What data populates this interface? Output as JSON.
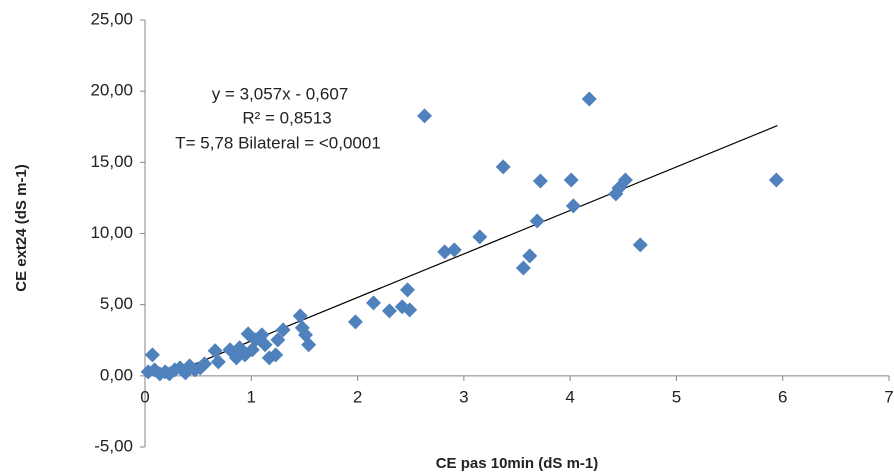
{
  "chart_data": {
    "type": "scatter",
    "x_label": "CE pas 10min (dS m-1)",
    "y_label": "CE ext24 (dS m-1)",
    "xlim": [
      0,
      7
    ],
    "xticks": [
      0,
      1,
      2,
      3,
      4,
      5,
      6,
      7
    ],
    "ylim": [
      -5,
      25
    ],
    "yticks": [
      {
        "value": -5,
        "label": "-5,00"
      },
      {
        "value": 0,
        "label": "0,00"
      },
      {
        "value": 5,
        "label": "5,00"
      },
      {
        "value": 10,
        "label": "10,00"
      },
      {
        "value": 15,
        "label": "15,00"
      },
      {
        "value": 20,
        "label": "20,00"
      },
      {
        "value": 25,
        "label": "25,00"
      }
    ],
    "grid": false,
    "color": "#4f81bd",
    "x": [
      0.07,
      0.03,
      0.09,
      0.14,
      0.19,
      0.23,
      0.28,
      0.33,
      0.38,
      0.42,
      0.47,
      0.52,
      0.56,
      0.66,
      0.69,
      0.8,
      0.86,
      0.89,
      0.94,
      0.97,
      1.01,
      1.04,
      1.1,
      1.13,
      1.17,
      1.23,
      1.25,
      1.3,
      1.46,
      1.48,
      1.51,
      1.54,
      1.98,
      2.15,
      2.3,
      2.42,
      2.47,
      2.49,
      2.63,
      2.82,
      2.91,
      3.15,
      3.37,
      3.56,
      3.62,
      3.69,
      3.72,
      4.01,
      4.03,
      4.18,
      4.43,
      4.46,
      4.52,
      4.66,
      5.94
    ],
    "values": [
      1.47,
      0.28,
      0.42,
      0.14,
      0.28,
      0.14,
      0.42,
      0.56,
      0.21,
      0.7,
      0.42,
      0.56,
      0.84,
      1.76,
      0.98,
      1.83,
      1.26,
      1.97,
      1.47,
      2.95,
      1.83,
      2.53,
      2.88,
      2.18,
      1.26,
      1.47,
      2.53,
      3.23,
      4.21,
      3.37,
      2.88,
      2.18,
      3.79,
      5.13,
      4.56,
      4.85,
      6.04,
      4.63,
      18.26,
      8.71,
      8.85,
      9.76,
      14.68,
      7.58,
      8.43,
      10.88,
      13.69,
      13.76,
      11.94,
      19.45,
      12.78,
      13.2,
      13.76,
      9.2,
      13.76
    ],
    "trendline": {
      "slope": 3.057,
      "intercept": -0.607,
      "x_range": [
        0.17,
        5.95
      ],
      "color": "#000000"
    },
    "annotations": [
      "y = 3,057x - 0,607",
      "R² = 0,8513",
      "T= 5,78 Bilateral = <0,0001"
    ]
  }
}
